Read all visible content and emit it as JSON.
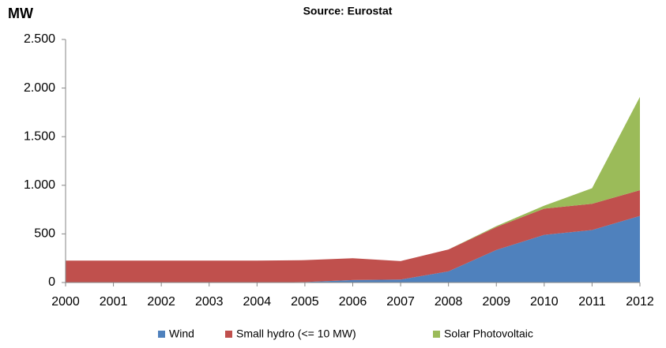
{
  "chart_data": {
    "type": "stacked_area",
    "title": "Source: Eurostat",
    "y_label": "MW",
    "categories": [
      "2000",
      "2001",
      "2002",
      "2003",
      "2004",
      "2005",
      "2006",
      "2007",
      "2008",
      "2009",
      "2010",
      "2011",
      "2012"
    ],
    "series": [
      {
        "name": "Wind",
        "color": "#4f81bd",
        "values": [
          0,
          0,
          0,
          0,
          0,
          5,
          25,
          30,
          115,
          335,
          490,
          540,
          685
        ]
      },
      {
        "name": "Small hydro (<= 10 MW)",
        "color": "#c0504d",
        "values": [
          225,
          225,
          225,
          225,
          225,
          225,
          225,
          190,
          225,
          235,
          270,
          270,
          265
        ]
      },
      {
        "name": "Solar Photovoltaic",
        "color": "#9bbb59",
        "values": [
          0,
          0,
          0,
          0,
          0,
          0,
          0,
          0,
          0,
          10,
          30,
          160,
          960
        ]
      }
    ],
    "ylim": [
      0,
      2500
    ],
    "yticks": [
      0,
      500,
      {
        "value": 1000,
        "label": "1.000"
      },
      {
        "value": 1500,
        "label": "1.500"
      },
      {
        "value": 2000,
        "label": "2.000"
      },
      {
        "value": 2500,
        "label": "2.500"
      }
    ],
    "legend": "bottom"
  }
}
